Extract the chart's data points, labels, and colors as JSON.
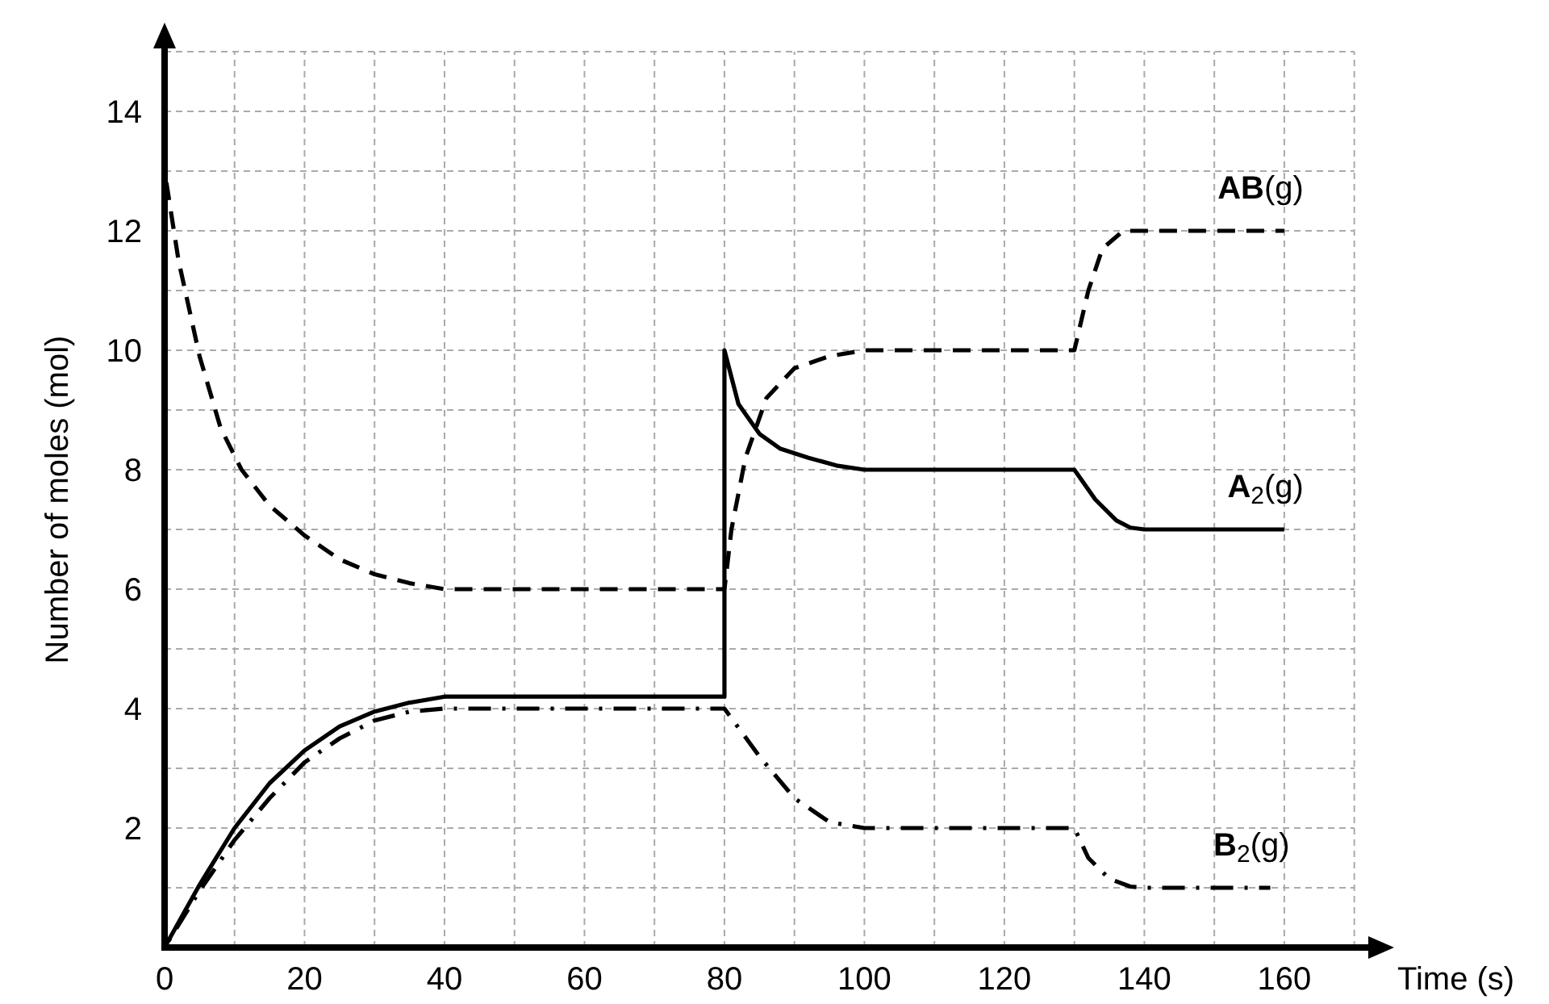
{
  "chart_data": {
    "type": "line",
    "xlabel": "Time (s)",
    "ylabel": "Number of moles (mol)",
    "x": [
      0,
      2,
      5,
      8,
      11,
      15,
      20,
      25,
      30,
      35,
      40,
      80,
      81,
      83,
      86,
      90,
      95,
      100,
      130,
      132,
      134,
      137,
      160
    ],
    "series": [
      {
        "name": "AB(g)",
        "color": "#000000",
        "line_style": "dashed",
        "values": [
          13,
          11.5,
          9.9,
          8.7,
          8,
          7.4,
          6.9,
          6.5,
          6.25,
          6.1,
          6,
          6,
          7,
          8.2,
          9.2,
          9.7,
          9.9,
          10,
          10,
          11,
          11.7,
          12,
          12
        ]
      },
      {
        "name": "A$_{2}$(g)",
        "color": "#000000",
        "line_style": "solid",
        "x": [
          0,
          5,
          10,
          15,
          20,
          25,
          30,
          35,
          40,
          80,
          80,
          82,
          85,
          88,
          92,
          96,
          100,
          130,
          133,
          136,
          138,
          140,
          160
        ],
        "values": [
          0,
          1.05,
          2,
          2.75,
          3.3,
          3.7,
          3.95,
          4.1,
          4.2,
          4.2,
          10,
          9.1,
          8.6,
          8.35,
          8.2,
          8.07,
          8,
          8,
          7.5,
          7.15,
          7.03,
          7,
          7
        ]
      },
      {
        "name": "B$_{2}$(g)",
        "color": "#000000",
        "line_style": "dashdot",
        "x": [
          0,
          5,
          10,
          15,
          20,
          25,
          30,
          35,
          40,
          80,
          85,
          90,
          95,
          100,
          130,
          132,
          135,
          138,
          140,
          158
        ],
        "values": [
          0,
          0.95,
          1.8,
          2.5,
          3.1,
          3.5,
          3.8,
          3.95,
          4,
          4,
          3.2,
          2.5,
          2.1,
          2,
          2,
          1.5,
          1.15,
          1.02,
          1,
          1
        ]
      }
    ],
    "xlim": [
      0,
      172
    ],
    "ylim": [
      0,
      15
    ],
    "xticks": [
      0,
      {
        "value": 10,
        "label": null
      },
      20,
      {
        "value": 30,
        "label": null
      },
      40,
      {
        "value": 50,
        "label": null
      },
      60,
      {
        "value": 70,
        "label": null
      },
      80,
      {
        "value": 90,
        "label": null
      },
      100,
      {
        "value": 110,
        "label": null
      },
      120,
      {
        "value": 130,
        "label": null
      },
      140,
      {
        "value": 150,
        "label": null
      },
      160,
      {
        "value": 170,
        "label": null
      }
    ],
    "yticks": [
      {
        "value": 1,
        "label": null
      },
      2,
      {
        "value": 3,
        "label": null
      },
      4,
      {
        "value": 5,
        "label": null
      },
      6,
      {
        "value": 7,
        "label": null
      },
      8,
      {
        "value": 9,
        "label": null
      },
      10,
      {
        "value": 11,
        "label": null
      },
      12,
      {
        "value": 13,
        "label": null
      },
      14,
      {
        "value": 15,
        "label": null
      }
    ],
    "grid": true,
    "marker": "none"
  }
}
